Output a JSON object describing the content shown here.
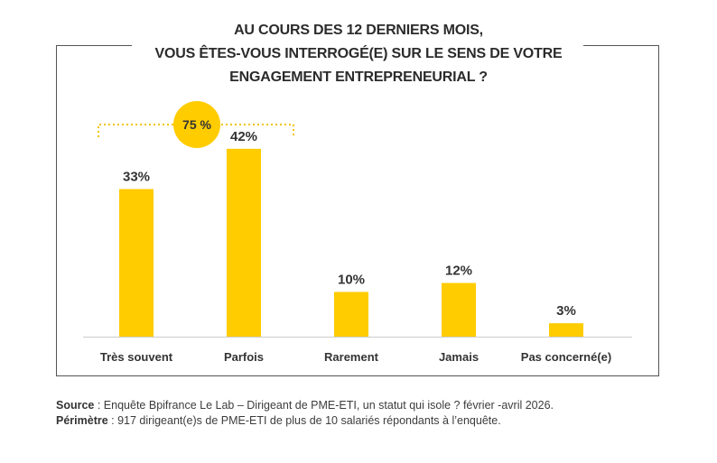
{
  "title_lines": [
    "AU COURS DES 12 DERNIERS MOIS,",
    "VOUS ÊTES-VOUS INTERROGÉ(E) SUR LE SENS DE VOTRE",
    "ENGAGEMENT ENTREPRENEURIAL ?"
  ],
  "colors": {
    "bar": "#FFCC00",
    "bubble": "#FFCC00",
    "dotted": "#F2C400",
    "text": "#333333",
    "frame": "#555555",
    "baseline": "#cccccc"
  },
  "chart_data": {
    "type": "bar",
    "categories": [
      "Très souvent",
      "Parfois",
      "Rarement",
      "Jamais",
      "Pas concerné(e)"
    ],
    "values": [
      33,
      42,
      10,
      12,
      3
    ],
    "value_labels": [
      "33%",
      "42%",
      "10%",
      "12%",
      "3%"
    ],
    "ylim": [
      0,
      45
    ],
    "grid": false,
    "annotation": {
      "label": "75 %",
      "spans": [
        "Très souvent",
        "Parfois"
      ]
    }
  },
  "notes": {
    "source_label": "Source",
    "source_text": " : Enquête Bpifrance Le Lab – Dirigeant de PME-ETI, un statut qui isole ? février -avril 2026.",
    "scope_label": "Périmètre",
    "scope_text": " : 917 dirigeant(e)s de PME-ETI de plus de 10 salariés répondants à l’enquête."
  }
}
